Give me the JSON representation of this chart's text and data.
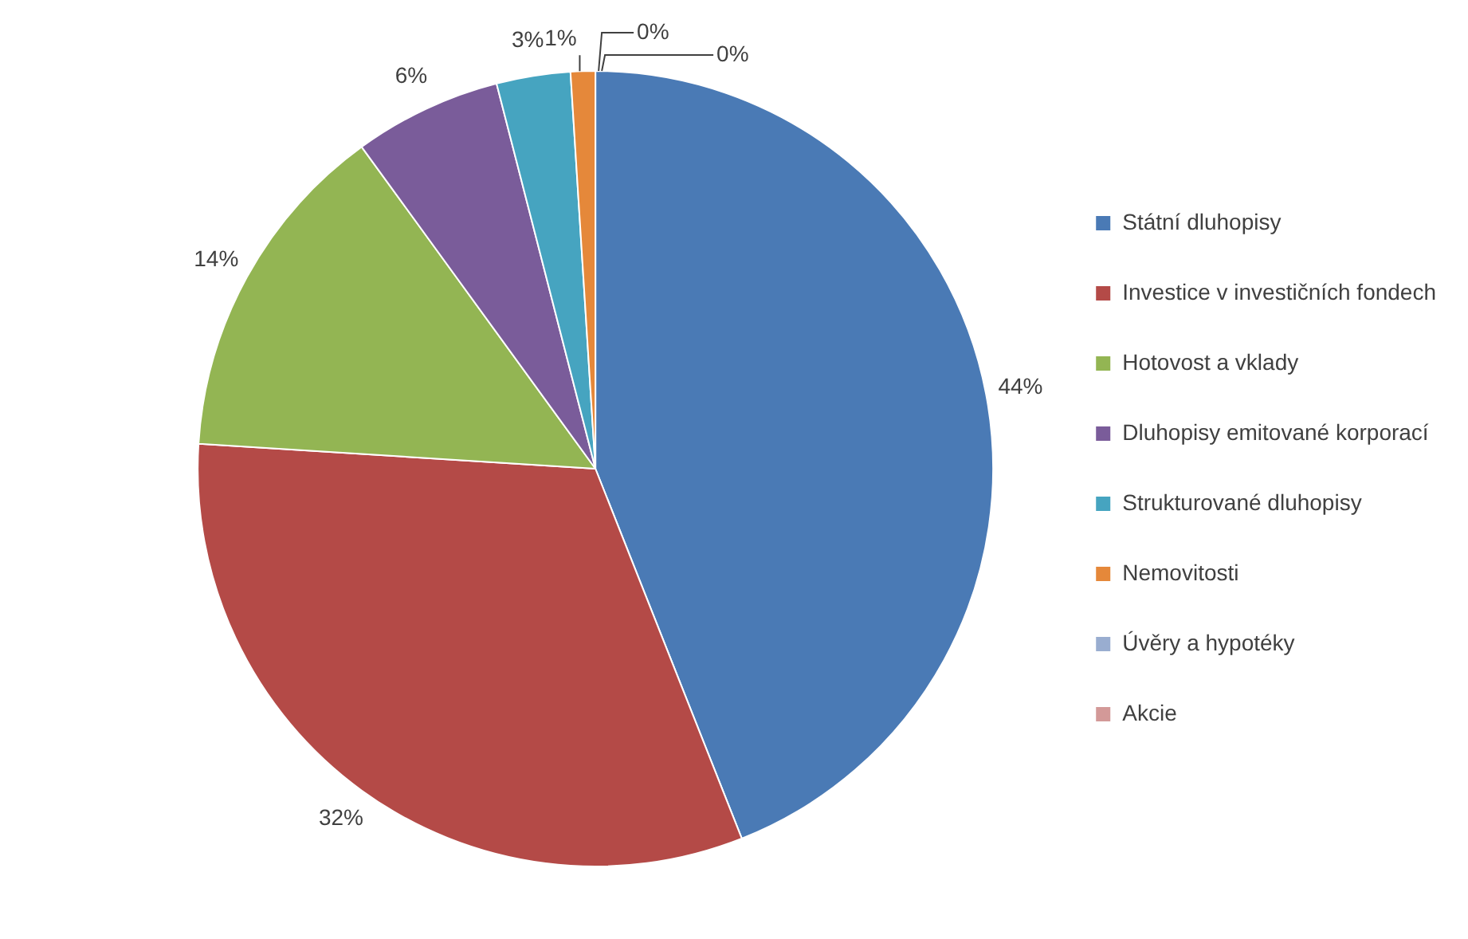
{
  "chart_data": {
    "type": "pie",
    "categories": [
      "Státní dluhopisy",
      "Investice v investičních fondech",
      "Hotovost a vklady",
      "Dluhopisy emitované korporací",
      "Strukturované dluhopisy",
      "Nemovitosti",
      "Úvěry a hypotéky",
      "Akcie"
    ],
    "values": [
      44,
      32,
      14,
      6,
      3,
      1,
      0,
      0
    ],
    "colors": [
      "#4a7ab5",
      "#b44a47",
      "#93b553",
      "#7a5c9a",
      "#46a4c0",
      "#e5883a",
      "#99add0",
      "#d39998"
    ],
    "value_labels": [
      "44%",
      "32%",
      "14%",
      "6%",
      "3%",
      "1%",
      "0%",
      "0%"
    ],
    "legend": "right"
  }
}
